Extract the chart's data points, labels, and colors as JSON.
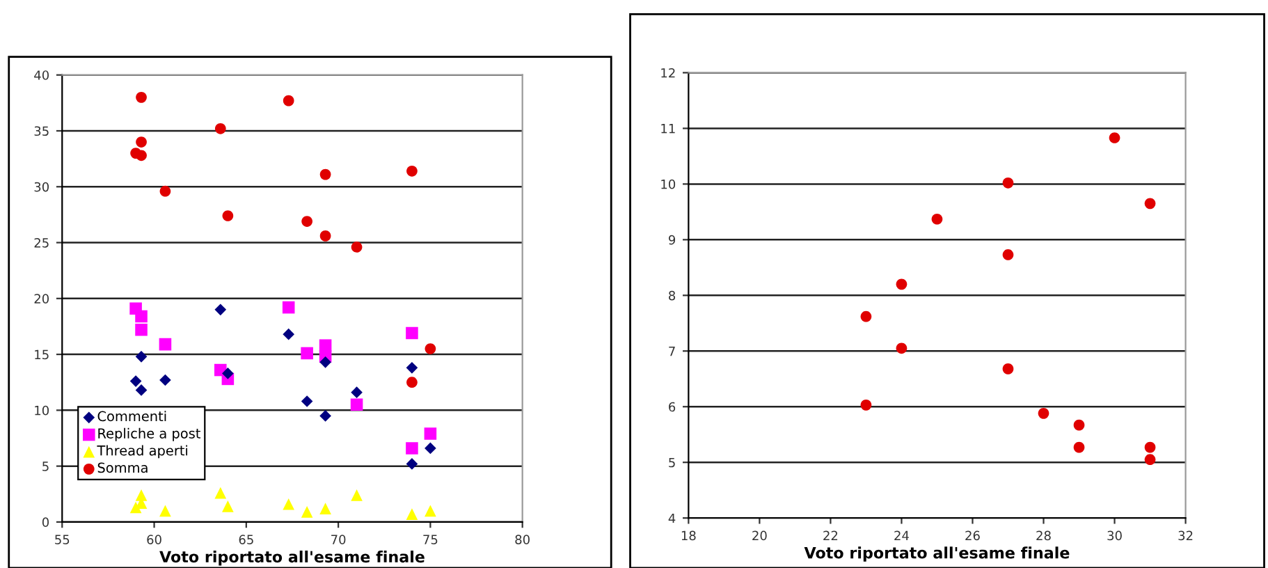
{
  "chart_data": [
    {
      "type": "scatter",
      "xlabel": "Voto riportato all'esame finale",
      "xlim": [
        55,
        80
      ],
      "xticks": [
        55,
        60,
        65,
        70,
        75,
        80
      ],
      "ylim": [
        0,
        40
      ],
      "yticks": [
        0,
        5,
        10,
        15,
        20,
        25,
        30,
        35,
        40
      ],
      "grid": "y",
      "legend": "bottom left",
      "series": [
        {
          "name": "Commenti",
          "color": "#000080",
          "marker": "diamond",
          "x": [
            59.0,
            59.3,
            59.3,
            60.6,
            63.6,
            64.0,
            67.3,
            68.3,
            69.3,
            69.3,
            71.0,
            74.0,
            74.0,
            75.0
          ],
          "values": [
            12.6,
            14.8,
            11.8,
            12.7,
            19.0,
            13.3,
            16.8,
            10.8,
            14.3,
            9.5,
            11.6,
            13.8,
            5.2,
            6.6
          ]
        },
        {
          "name": "Repliche a post",
          "color": "#ff00ff",
          "marker": "square",
          "x": [
            59.0,
            59.3,
            59.3,
            60.6,
            63.6,
            64.0,
            67.3,
            68.3,
            69.3,
            69.3,
            71.0,
            74.0,
            74.0,
            75.0
          ],
          "values": [
            19.1,
            18.4,
            17.2,
            15.9,
            13.6,
            12.8,
            19.2,
            15.1,
            15.8,
            14.8,
            10.5,
            16.9,
            6.6,
            7.9
          ]
        },
        {
          "name": "Thread aperti",
          "color": "#ffff00",
          "marker": "triangle",
          "x": [
            59.0,
            59.3,
            59.3,
            60.6,
            63.6,
            64.0,
            67.3,
            68.3,
            69.3,
            71.0,
            74.0,
            75.0
          ],
          "values": [
            1.3,
            2.4,
            1.7,
            1.0,
            2.6,
            1.4,
            1.6,
            0.9,
            1.2,
            2.4,
            0.7,
            1.0
          ]
        },
        {
          "name": "Somma",
          "color": "#e00000",
          "marker": "circle",
          "x": [
            59.0,
            59.3,
            59.3,
            59.3,
            60.6,
            63.6,
            64.0,
            67.3,
            68.3,
            69.3,
            69.3,
            71.0,
            74.0,
            74.0,
            75.0
          ],
          "values": [
            33.0,
            38.0,
            34.0,
            32.8,
            29.6,
            35.2,
            27.4,
            37.7,
            26.9,
            31.1,
            25.6,
            24.6,
            31.4,
            12.5,
            15.5
          ]
        }
      ]
    },
    {
      "type": "scatter",
      "xlabel": "Voto riportato all'esame finale",
      "xlim": [
        18,
        32
      ],
      "xticks": [
        18,
        20,
        22,
        24,
        26,
        28,
        30,
        32
      ],
      "ylim": [
        4,
        12
      ],
      "yticks": [
        4,
        5,
        6,
        7,
        8,
        9,
        10,
        11,
        12
      ],
      "grid": "y",
      "marker": "circle",
      "series": [
        {
          "color": "#e00000",
          "x": [
            23,
            23,
            24,
            24,
            25,
            27,
            27,
            27,
            28,
            29,
            29,
            30,
            31,
            31,
            31
          ],
          "values": [
            7.62,
            6.03,
            8.2,
            7.05,
            9.37,
            10.02,
            8.73,
            6.68,
            5.88,
            5.67,
            5.27,
            10.83,
            9.65,
            5.27,
            5.05
          ]
        }
      ]
    }
  ]
}
